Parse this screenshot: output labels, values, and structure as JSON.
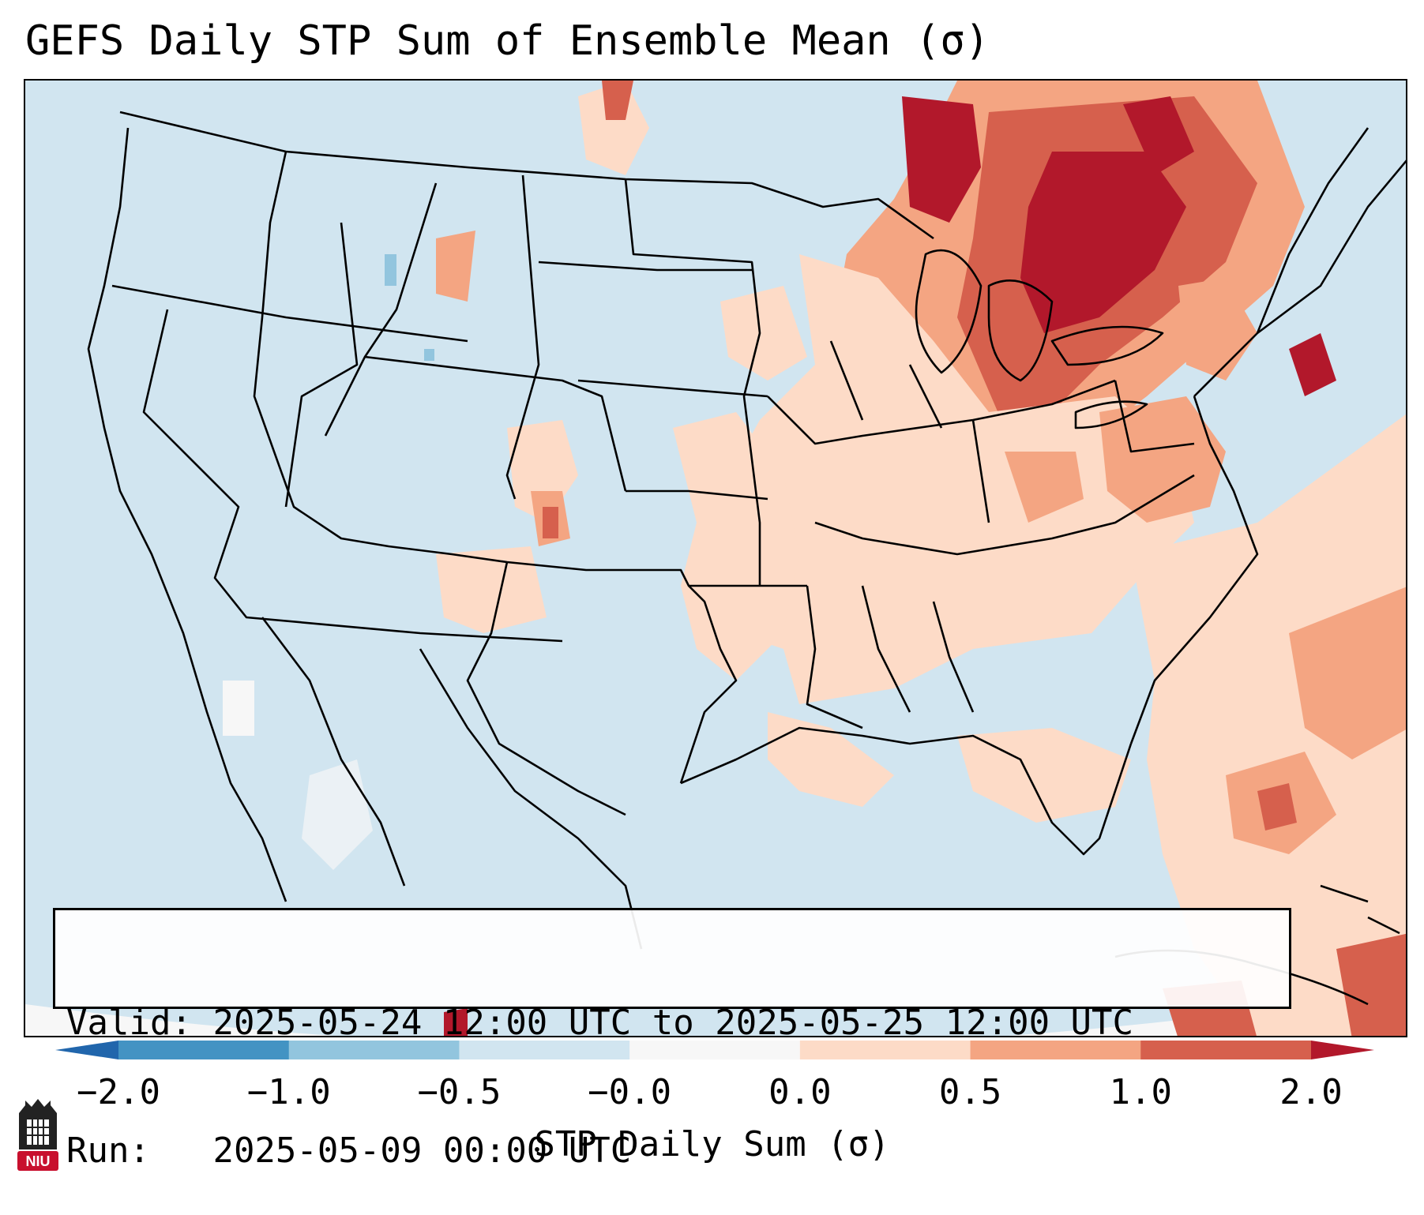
{
  "title": "GEFS Daily STP Sum of Ensemble Mean (σ)",
  "info": {
    "valid_label": "Valid:",
    "valid_value": "2025-05-24 12:00 UTC to 2025-05-25 12:00 UTC",
    "run_label": "Run:",
    "run_value": "2025-05-09 00:00 UTC"
  },
  "colorbar": {
    "label": "STP Daily Sum (σ)",
    "ticks": [
      "−2.0",
      "−1.0",
      "−0.5",
      "−0.0",
      "0.0",
      "0.5",
      "1.0",
      "2.0"
    ],
    "colors": [
      "#4393c3",
      "#92c5de",
      "#d1e5f0",
      "#f7f7f7",
      "#fddbc7",
      "#f4a582",
      "#d6604d"
    ],
    "extend_low_color": "#2166ac",
    "extend_high_color": "#b2182b"
  },
  "map": {
    "background_color": "#d1e5f0",
    "outside_domain_color": "#f7f7f7",
    "region": "Contiguous United States, northern Mexico, Gulf of Mexico, western Atlantic",
    "projection_area_note": "Lambert conformal GEFS grid",
    "field_colors": {
      "light_positive": "#fddbc7",
      "moderate_positive": "#f4a582",
      "strong_positive": "#d6604d",
      "extreme_positive": "#b2182b",
      "slight_negative": "#92c5de"
    },
    "state_line_color": "#000000"
  },
  "logo": {
    "text": "NIU",
    "icon": "niu-castle-logo-icon",
    "color": "#c8102e"
  }
}
